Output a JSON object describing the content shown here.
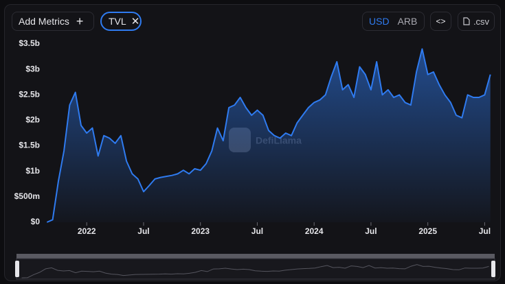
{
  "toolbar": {
    "add_metrics": "Add Metrics",
    "metric": "TVL",
    "currencies": [
      "USD",
      "ARB"
    ],
    "csv": ".csv"
  },
  "watermark": "DefiLlama",
  "chart_data": {
    "type": "area",
    "x": [
      2021.65,
      2021.7,
      2021.75,
      2021.8,
      2021.85,
      2021.9,
      2021.95,
      2022.0,
      2022.05,
      2022.1,
      2022.15,
      2022.2,
      2022.25,
      2022.3,
      2022.35,
      2022.4,
      2022.45,
      2022.5,
      2022.55,
      2022.6,
      2022.65,
      2022.7,
      2022.75,
      2022.8,
      2022.85,
      2022.9,
      2022.95,
      2023.0,
      2023.05,
      2023.1,
      2023.15,
      2023.2,
      2023.25,
      2023.3,
      2023.35,
      2023.4,
      2023.45,
      2023.5,
      2023.55,
      2023.6,
      2023.65,
      2023.7,
      2023.75,
      2023.8,
      2023.85,
      2023.9,
      2023.95,
      2024.0,
      2024.05,
      2024.1,
      2024.15,
      2024.2,
      2024.25,
      2024.3,
      2024.35,
      2024.4,
      2024.45,
      2024.5,
      2024.55,
      2024.6,
      2024.65,
      2024.7,
      2024.75,
      2024.8,
      2024.85,
      2024.9,
      2024.95,
      2025.0,
      2025.05,
      2025.1,
      2025.15,
      2025.2,
      2025.25,
      2025.3,
      2025.35,
      2025.4,
      2025.45,
      2025.5,
      2025.55
    ],
    "series": [
      {
        "name": "TVL",
        "color": "#2f7bf0",
        "values": [
          0.0,
          0.05,
          0.8,
          1.4,
          2.3,
          2.55,
          1.9,
          1.75,
          1.85,
          1.3,
          1.7,
          1.65,
          1.55,
          1.7,
          1.2,
          0.95,
          0.85,
          0.6,
          0.72,
          0.85,
          0.88,
          0.9,
          0.92,
          0.95,
          1.02,
          0.95,
          1.05,
          1.02,
          1.15,
          1.4,
          1.85,
          1.6,
          2.25,
          2.3,
          2.45,
          2.25,
          2.1,
          2.2,
          2.1,
          1.8,
          1.7,
          1.65,
          1.75,
          1.7,
          1.95,
          2.1,
          2.25,
          2.35,
          2.4,
          2.5,
          2.85,
          3.15,
          2.6,
          2.7,
          2.45,
          3.05,
          2.9,
          2.6,
          3.15,
          2.5,
          2.6,
          2.45,
          2.5,
          2.35,
          2.3,
          2.95,
          3.4,
          2.9,
          2.95,
          2.7,
          2.5,
          2.35,
          2.1,
          2.05,
          2.5,
          2.45,
          2.45,
          2.5,
          2.9
        ]
      }
    ],
    "xlim": [
      2021.63,
      2025.57
    ],
    "xticks": [
      {
        "value": 2022,
        "label": "2022"
      },
      {
        "value": 2022.5,
        "label": "Jul"
      },
      {
        "value": 2023,
        "label": "2023"
      },
      {
        "value": 2023.5,
        "label": "Jul"
      },
      {
        "value": 2024,
        "label": "2024"
      },
      {
        "value": 2024.5,
        "label": "Jul"
      },
      {
        "value": 2025,
        "label": "2025"
      },
      {
        "value": 2025.5,
        "label": "Jul"
      }
    ],
    "ylim": [
      0,
      3.5
    ],
    "yticks": [
      {
        "value": 0,
        "label": "$0"
      },
      {
        "value": 0.5,
        "label": "$500m"
      },
      {
        "value": 1,
        "label": "$1b"
      },
      {
        "value": 1.5,
        "label": "$1.5b"
      },
      {
        "value": 2,
        "label": "$2b"
      },
      {
        "value": 2.5,
        "label": "$2.5b"
      },
      {
        "value": 3,
        "label": "$3b"
      },
      {
        "value": 3.5,
        "label": "$3.5b"
      }
    ]
  }
}
